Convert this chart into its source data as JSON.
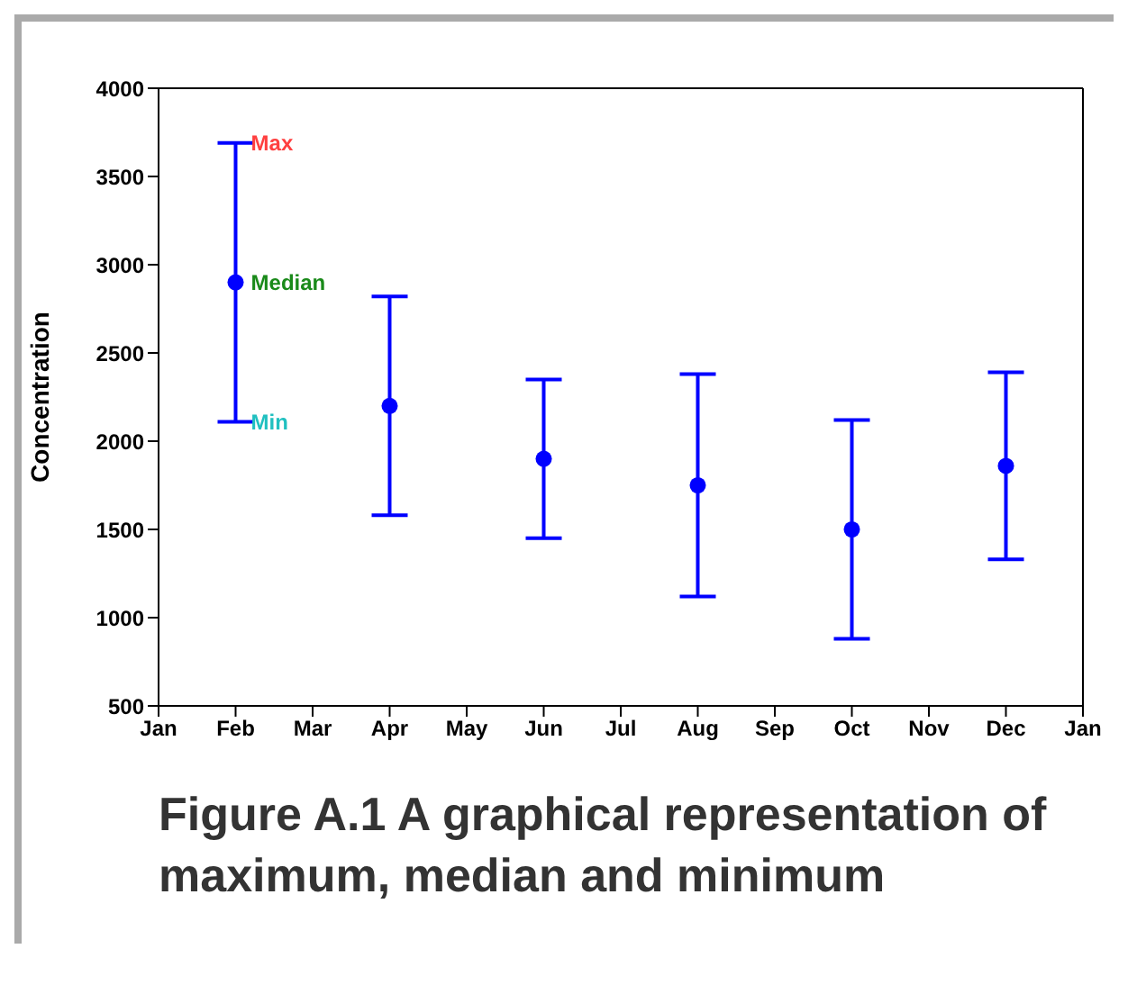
{
  "chart_data": {
    "type": "scatter",
    "title": "Figure A.1 A graphical representation of maximum, median and minimum",
    "ylabel": "Concentration",
    "categories": [
      "Jan",
      "Feb",
      "Mar",
      "Apr",
      "May",
      "Jun",
      "Jul",
      "Aug",
      "Sep",
      "Oct",
      "Nov",
      "Dec",
      "Jan"
    ],
    "series": [
      {
        "color": "#0000ff",
        "values": [
          null,
          2900,
          null,
          2200,
          null,
          1900,
          null,
          1750,
          null,
          1500,
          null,
          1860,
          null
        ],
        "errors": [
          null,
          [
            2110,
            3690
          ],
          null,
          [
            1580,
            2820
          ],
          null,
          [
            1450,
            2350
          ],
          null,
          [
            1120,
            2380
          ],
          null,
          [
            880,
            2120
          ],
          null,
          [
            1330,
            2390
          ],
          null
        ]
      }
    ],
    "ylim": [
      500,
      4000
    ],
    "yticks": [
      500,
      1000,
      1500,
      2000,
      2500,
      3000,
      3500,
      4000
    ],
    "grid": false,
    "legend": false,
    "marker": "circle",
    "annotations": [
      {
        "text": "Max",
        "x": "Feb",
        "y": 3690
      },
      {
        "text": "Median",
        "x": "Feb",
        "y": 2900
      },
      {
        "text": "Min",
        "x": "Feb",
        "y": 2110
      }
    ]
  }
}
